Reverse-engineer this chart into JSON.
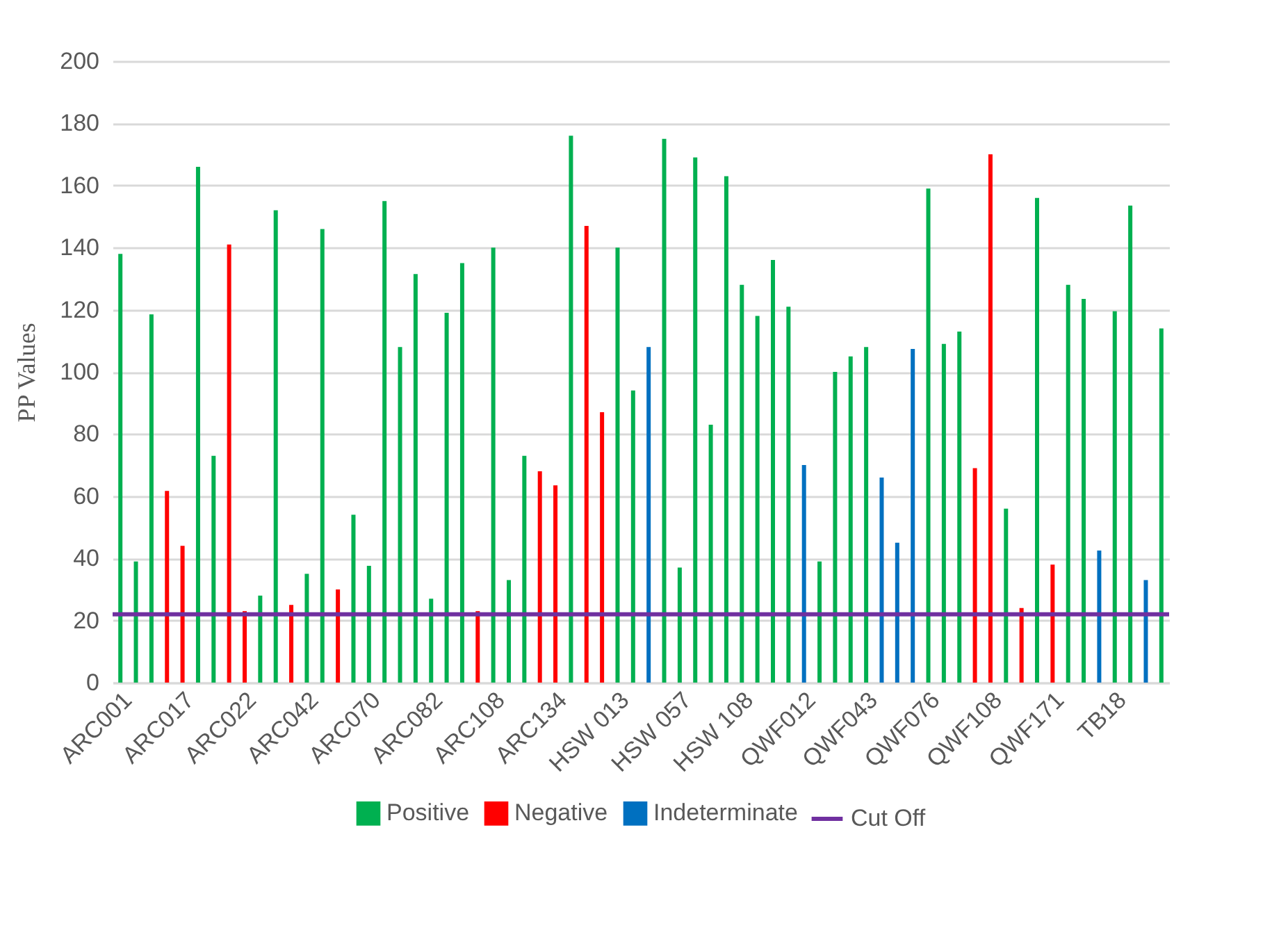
{
  "chart_data": {
    "type": "bar",
    "ylabel": "PP Values",
    "categories": [
      "ARC001",
      null,
      null,
      null,
      "ARC017",
      null,
      null,
      null,
      "ARC022",
      null,
      null,
      null,
      "ARC042",
      null,
      null,
      null,
      "ARC070",
      null,
      null,
      null,
      "ARC082",
      null,
      null,
      null,
      "ARC108",
      null,
      null,
      null,
      "ARC134",
      null,
      null,
      null,
      "HSW 013",
      null,
      null,
      null,
      "HSW 057",
      null,
      null,
      null,
      "HSW 108",
      null,
      null,
      null,
      "QWF012",
      null,
      null,
      null,
      "QWF043",
      null,
      null,
      null,
      "QWF076",
      null,
      null,
      null,
      "QWF108",
      null,
      null,
      null,
      "QWF171",
      null,
      null,
      null,
      "TB18",
      null,
      null,
      null
    ],
    "series": [
      {
        "name": "Positive",
        "color": "#00b050",
        "values": [
          138,
          39,
          118.5,
          null,
          null,
          166,
          73,
          null,
          null,
          28,
          152,
          null,
          35,
          146,
          null,
          54,
          37.6,
          155,
          108,
          131.5,
          27,
          119,
          135,
          null,
          140,
          33,
          73,
          null,
          null,
          176,
          null,
          null,
          140,
          94,
          null,
          175,
          37,
          169,
          83,
          163,
          128,
          118,
          136,
          121,
          null,
          39,
          100,
          105,
          108,
          null,
          null,
          null,
          159,
          109,
          113,
          null,
          null,
          56,
          null,
          156,
          null,
          128,
          123.5,
          null,
          119.5,
          153.5,
          null,
          114
        ]
      },
      {
        "name": "Negative",
        "color": "#ff0000",
        "values": [
          null,
          null,
          null,
          61.7,
          44,
          null,
          null,
          141,
          23,
          null,
          null,
          25,
          null,
          null,
          30,
          null,
          null,
          null,
          null,
          null,
          null,
          null,
          null,
          23,
          null,
          null,
          null,
          68,
          63.5,
          null,
          147,
          87,
          null,
          null,
          null,
          null,
          null,
          null,
          null,
          null,
          null,
          null,
          null,
          null,
          null,
          null,
          null,
          null,
          null,
          null,
          null,
          null,
          null,
          null,
          null,
          69,
          170,
          null,
          24,
          null,
          38,
          null,
          null,
          null,
          null,
          null,
          null,
          null
        ]
      },
      {
        "name": "Indeterminate",
        "color": "#0070c0",
        "values": [
          null,
          null,
          null,
          null,
          null,
          null,
          null,
          null,
          null,
          null,
          null,
          null,
          null,
          null,
          null,
          null,
          null,
          null,
          null,
          null,
          null,
          null,
          null,
          null,
          null,
          null,
          null,
          null,
          null,
          null,
          null,
          null,
          null,
          null,
          108,
          null,
          null,
          null,
          null,
          null,
          null,
          null,
          null,
          null,
          70,
          null,
          null,
          null,
          null,
          66,
          45,
          107.4,
          null,
          null,
          null,
          null,
          null,
          null,
          null,
          null,
          null,
          null,
          null,
          42.5,
          null,
          null,
          33,
          null
        ]
      }
    ],
    "ref_lines": [
      {
        "axis": "y",
        "value": 22,
        "label": "Cut Off",
        "color": "#7030a0"
      }
    ],
    "ylim": [
      0,
      200
    ],
    "yticks": [
      0,
      20,
      40,
      60,
      80,
      100,
      120,
      140,
      160,
      180,
      200
    ],
    "grid": "y",
    "legend": "bottom"
  }
}
